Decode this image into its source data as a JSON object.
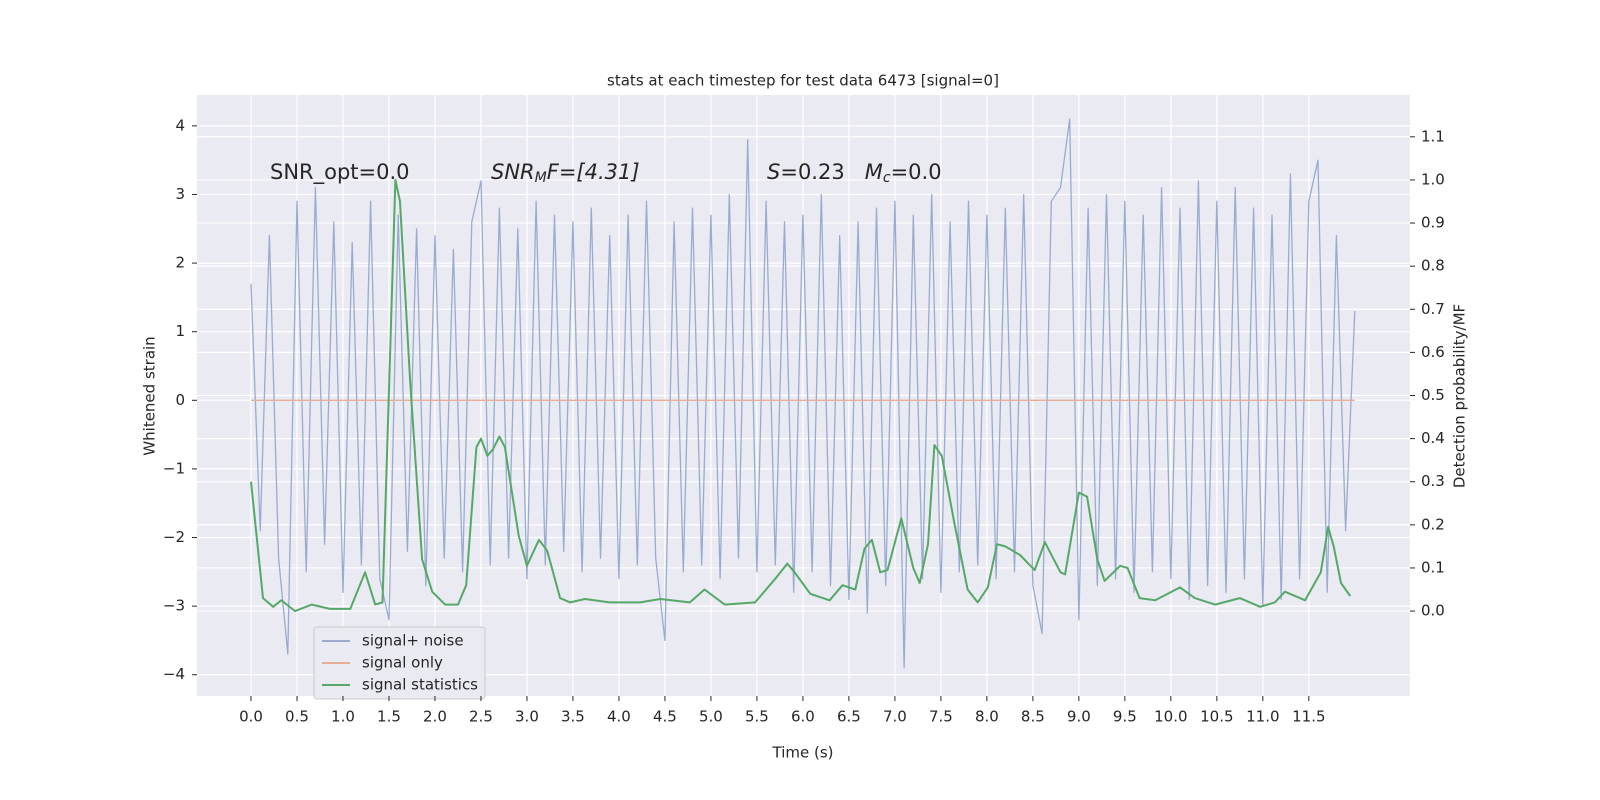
{
  "chart_data": {
    "type": "line",
    "title": "stats at each timestep for test data 6473 [signal=0]",
    "x_label": "Time (s)",
    "y_label": "Whitened strain",
    "y2_label": "Detection probability/MF",
    "xlim": [
      -0.587,
      12.6
    ],
    "ylim": [
      -4.31,
      4.45
    ],
    "y2lim": [
      -0.197,
      1.197
    ],
    "xticks": [
      {
        "value": 0,
        "label": "0.0"
      },
      0.5,
      {
        "value": 1,
        "label": "1.0"
      },
      1.5,
      {
        "value": 2,
        "label": "2.0"
      },
      2.5,
      {
        "value": 3,
        "label": "3.0"
      },
      3.5,
      {
        "value": 4,
        "label": "4.0"
      },
      4.5,
      {
        "value": 5,
        "label": "5.0"
      },
      5.5,
      {
        "value": 6,
        "label": "6.0"
      },
      6.5,
      {
        "value": 7,
        "label": "7.0"
      },
      7.5,
      {
        "value": 8,
        "label": "8.0"
      },
      8.5,
      {
        "value": 9,
        "label": "9.0"
      },
      9.5,
      {
        "value": 10,
        "label": "10.0"
      },
      10.5,
      {
        "value": 11,
        "label": "11.0"
      },
      11.5
    ],
    "yticks": [
      {
        "value": -4,
        "label": "−4"
      },
      {
        "value": -3,
        "label": "−3"
      },
      {
        "value": -2,
        "label": "−2"
      },
      {
        "value": -1,
        "label": "−1"
      },
      0,
      1,
      2,
      3,
      4
    ],
    "y2ticks": [
      {
        "value": 0,
        "label": "0.0"
      },
      0.1,
      0.2,
      0.3,
      0.4,
      0.5,
      0.6,
      0.7,
      0.8,
      0.9,
      {
        "value": 1,
        "label": "1.0"
      },
      1.1
    ],
    "grid": true,
    "legend": "lower left",
    "annotations": [
      [
        "SNR_opt=0.0"
      ],
      [
        "SNR",
        "M",
        "F=[4.31]"
      ],
      [
        "S",
        "=0.23   ",
        "M",
        "c",
        "=0.0"
      ]
    ],
    "series": [
      {
        "name": "signal+ noise",
        "color": "#9aabd0",
        "x": [
          0,
          0.1,
          0.2,
          0.3,
          0.4,
          0.5,
          0.6,
          0.7,
          0.8,
          0.9,
          1,
          1.1,
          1.2,
          1.3,
          1.4,
          1.5,
          1.6,
          1.7,
          1.8,
          1.9,
          2,
          2.1,
          2.2,
          2.3,
          2.4,
          2.5,
          2.6,
          2.7,
          2.8,
          2.9,
          3,
          3.1,
          3.2,
          3.3,
          3.4,
          3.5,
          3.6,
          3.7,
          3.8,
          3.9,
          4,
          4.1,
          4.2,
          4.3,
          4.4,
          4.5,
          4.6,
          4.7,
          4.8,
          4.9,
          5,
          5.1,
          5.2,
          5.3,
          5.4,
          5.5,
          5.6,
          5.7,
          5.8,
          5.9,
          6,
          6.1,
          6.2,
          6.3,
          6.4,
          6.5,
          6.6,
          6.7,
          6.8,
          6.9,
          7,
          7.1,
          7.2,
          7.3,
          7.4,
          7.5,
          7.6,
          7.7,
          7.8,
          7.9,
          8,
          8.1,
          8.2,
          8.3,
          8.4,
          8.5,
          8.6,
          8.7,
          8.8,
          8.9,
          9,
          9.1,
          9.2,
          9.3,
          9.4,
          9.5,
          9.6,
          9.7,
          9.8,
          9.9,
          10,
          10.1,
          10.2,
          10.3,
          10.4,
          10.5,
          10.6,
          10.7,
          10.8,
          10.9,
          11,
          11.1,
          11.2,
          11.3,
          11.4,
          11.5,
          11.6,
          11.7,
          11.8,
          11.9,
          12
        ],
        "values": [
          1.7,
          -1.9,
          2.4,
          -2.3,
          -3.7,
          2.9,
          -2.5,
          3.1,
          -2.1,
          2.6,
          -2.8,
          2.3,
          -2.4,
          2.9,
          -2.6,
          -3.2,
          2.7,
          -2.2,
          2.5,
          -2.7,
          2.4,
          -2.3,
          2.2,
          -2.5,
          2.6,
          3.2,
          -2.4,
          2.8,
          -2.3,
          2.5,
          -2.6,
          2.9,
          -2.4,
          2.7,
          -2.2,
          2.6,
          -2.5,
          2.8,
          -2.3,
          2.4,
          -2.6,
          2.7,
          -2.4,
          2.9,
          -2.3,
          -3.5,
          2.6,
          -2.5,
          2.8,
          -2.4,
          2.7,
          -2.6,
          3.0,
          -2.3,
          3.8,
          -2.5,
          2.9,
          -2.4,
          2.6,
          -2.8,
          2.7,
          -2.5,
          3.0,
          -2.7,
          2.4,
          -2.9,
          2.6,
          -3.1,
          2.8,
          -2.7,
          2.9,
          -3.9,
          2.7,
          -2.6,
          3.0,
          -2.8,
          2.6,
          -2.5,
          2.9,
          -2.4,
          2.7,
          -2.6,
          2.8,
          -2.5,
          3.0,
          -2.7,
          -3.4,
          2.9,
          3.1,
          4.1,
          -3.2,
          2.8,
          -2.7,
          3.0,
          -2.6,
          2.9,
          -2.8,
          2.7,
          -2.5,
          3.1,
          -2.6,
          2.8,
          -2.9,
          3.2,
          -2.7,
          2.9,
          -2.8,
          3.1,
          -2.6,
          2.8,
          -3.0,
          2.7,
          -2.9,
          3.3,
          -2.6,
          2.9,
          3.5,
          -2.8,
          2.4,
          -1.9,
          1.3
        ]
      },
      {
        "name": "signal only",
        "color": "#e5ae96",
        "x": [
          0,
          12
        ],
        "values": [
          0,
          0
        ]
      },
      {
        "name": "signal statistics",
        "color": "#55a868",
        "axis": "y2",
        "x": [
          0,
          0.13,
          0.24,
          0.33,
          0.48,
          0.66,
          0.86,
          1.08,
          1.24,
          1.35,
          1.43,
          1.57,
          1.62,
          1.73,
          1.86,
          1.97,
          2.11,
          2.25,
          2.34,
          2.45,
          2.5,
          2.57,
          2.63,
          2.7,
          2.76,
          2.91,
          3.0,
          3.13,
          3.22,
          3.36,
          3.47,
          3.63,
          3.9,
          4.23,
          4.45,
          4.77,
          4.93,
          5.15,
          5.48,
          5.7,
          5.83,
          5.91,
          6.08,
          6.29,
          6.43,
          6.57,
          6.67,
          6.75,
          6.84,
          6.92,
          7.07,
          7.2,
          7.27,
          7.36,
          7.43,
          7.51,
          7.65,
          7.79,
          7.9,
          8.01,
          8.11,
          8.2,
          8.36,
          8.52,
          8.63,
          8.8,
          8.85,
          9.0,
          9.09,
          9.2,
          9.28,
          9.45,
          9.53,
          9.66,
          9.83,
          10.1,
          10.26,
          10.48,
          10.75,
          10.97,
          11.13,
          11.24,
          11.46,
          11.63,
          11.71,
          11.77,
          11.85,
          11.95
        ],
        "values": [
          0.3,
          0.03,
          0.01,
          0.025,
          0.0,
          0.015,
          0.005,
          0.005,
          0.09,
          0.015,
          0.02,
          1.0,
          0.95,
          0.535,
          0.12,
          0.045,
          0.015,
          0.015,
          0.06,
          0.38,
          0.4,
          0.36,
          0.375,
          0.405,
          0.38,
          0.175,
          0.105,
          0.165,
          0.14,
          0.03,
          0.02,
          0.028,
          0.02,
          0.02,
          0.028,
          0.02,
          0.05,
          0.015,
          0.02,
          0.075,
          0.11,
          0.09,
          0.04,
          0.025,
          0.06,
          0.05,
          0.145,
          0.165,
          0.09,
          0.095,
          0.215,
          0.1,
          0.065,
          0.155,
          0.385,
          0.36,
          0.2,
          0.05,
          0.02,
          0.055,
          0.155,
          0.15,
          0.13,
          0.095,
          0.16,
          0.09,
          0.085,
          0.275,
          0.265,
          0.12,
          0.07,
          0.105,
          0.1,
          0.03,
          0.025,
          0.055,
          0.03,
          0.015,
          0.03,
          0.01,
          0.02,
          0.045,
          0.025,
          0.09,
          0.195,
          0.15,
          0.065,
          0.035
        ]
      }
    ]
  }
}
